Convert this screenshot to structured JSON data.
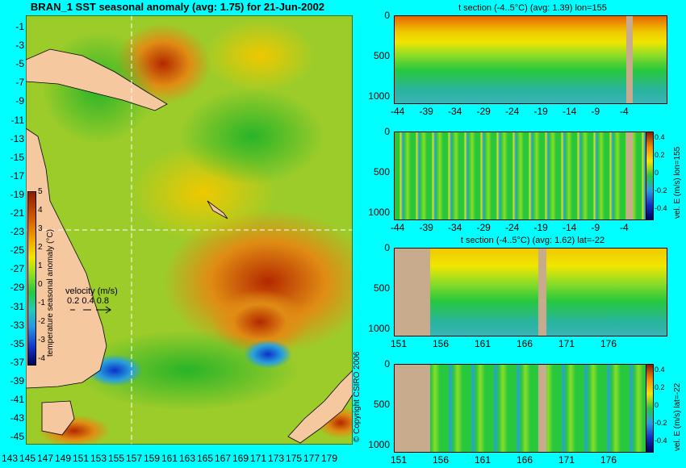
{
  "map": {
    "title": "BRAN_1 SST seasonal anomaly (avg: 1.75) for 21-Jun-2002",
    "lat_ticks": [
      "-1",
      "-3",
      "-5",
      "-7",
      "-9",
      "-11",
      "-13",
      "-15",
      "-17",
      "-19",
      "-21",
      "-23",
      "-25",
      "-27",
      "-29",
      "-31",
      "-33",
      "-35",
      "-37",
      "-39",
      "-41",
      "-43",
      "-45"
    ],
    "lon_ticks": [
      "143",
      "145",
      "147",
      "149",
      "151",
      "153",
      "155",
      "157",
      "159",
      "161",
      "163",
      "165",
      "167",
      "169",
      "171",
      "173",
      "175",
      "177",
      "179"
    ],
    "colorbar": {
      "label": "temperature seasonal anomaly (°C)",
      "ticks": [
        "5",
        "4",
        "3",
        "2",
        "1",
        "0",
        "-1",
        "-2",
        "-3",
        "-4"
      ]
    },
    "velocity_legend": {
      "label": "velocity (m/s)",
      "values": "0.2 0.4 0.8"
    },
    "section_lon": 155,
    "section_lat": -22,
    "colors": {
      "warm": "#c85a00",
      "neutral": "#3cc83c",
      "cool": "#1e64dc",
      "land": "#f5c8a0"
    }
  },
  "panels": [
    {
      "title": "t section (-4..5°C) (avg: 1.39) lon=155",
      "x_ticks": [
        "-44",
        "-39",
        "-34",
        "-29",
        "-24",
        "-19",
        "-14",
        "-9",
        "-4"
      ],
      "y_ticks": [
        "0",
        "500",
        "1000"
      ],
      "side_label": "",
      "colorbar_ticks": []
    },
    {
      "title": "",
      "x_ticks": [
        "-44",
        "-39",
        "-34",
        "-29",
        "-24",
        "-19",
        "-14",
        "-9",
        "-4"
      ],
      "y_ticks": [
        "0",
        "500",
        "1000"
      ],
      "side_label": "vel. E (m/s) lon=155",
      "colorbar_ticks": [
        "0.4",
        "0.2",
        "0",
        "-0.2",
        "-0.4"
      ]
    },
    {
      "title": "t section (-4..5°C) (avg: 1.62) lat=-22",
      "x_ticks": [
        "151",
        "156",
        "161",
        "166",
        "171",
        "176"
      ],
      "y_ticks": [
        "0",
        "500",
        "1000"
      ],
      "side_label": "",
      "colorbar_ticks": []
    },
    {
      "title": "",
      "x_ticks": [
        "151",
        "156",
        "161",
        "166",
        "171",
        "176"
      ],
      "y_ticks": [
        "0",
        "500",
        "1000"
      ],
      "side_label": "vel. E (m/s) lat=-22",
      "colorbar_ticks": [
        "0.4",
        "0.2",
        "0",
        "-0.2",
        "-0.4"
      ]
    }
  ],
  "copyright": "© Copyright CSIRO 2006"
}
